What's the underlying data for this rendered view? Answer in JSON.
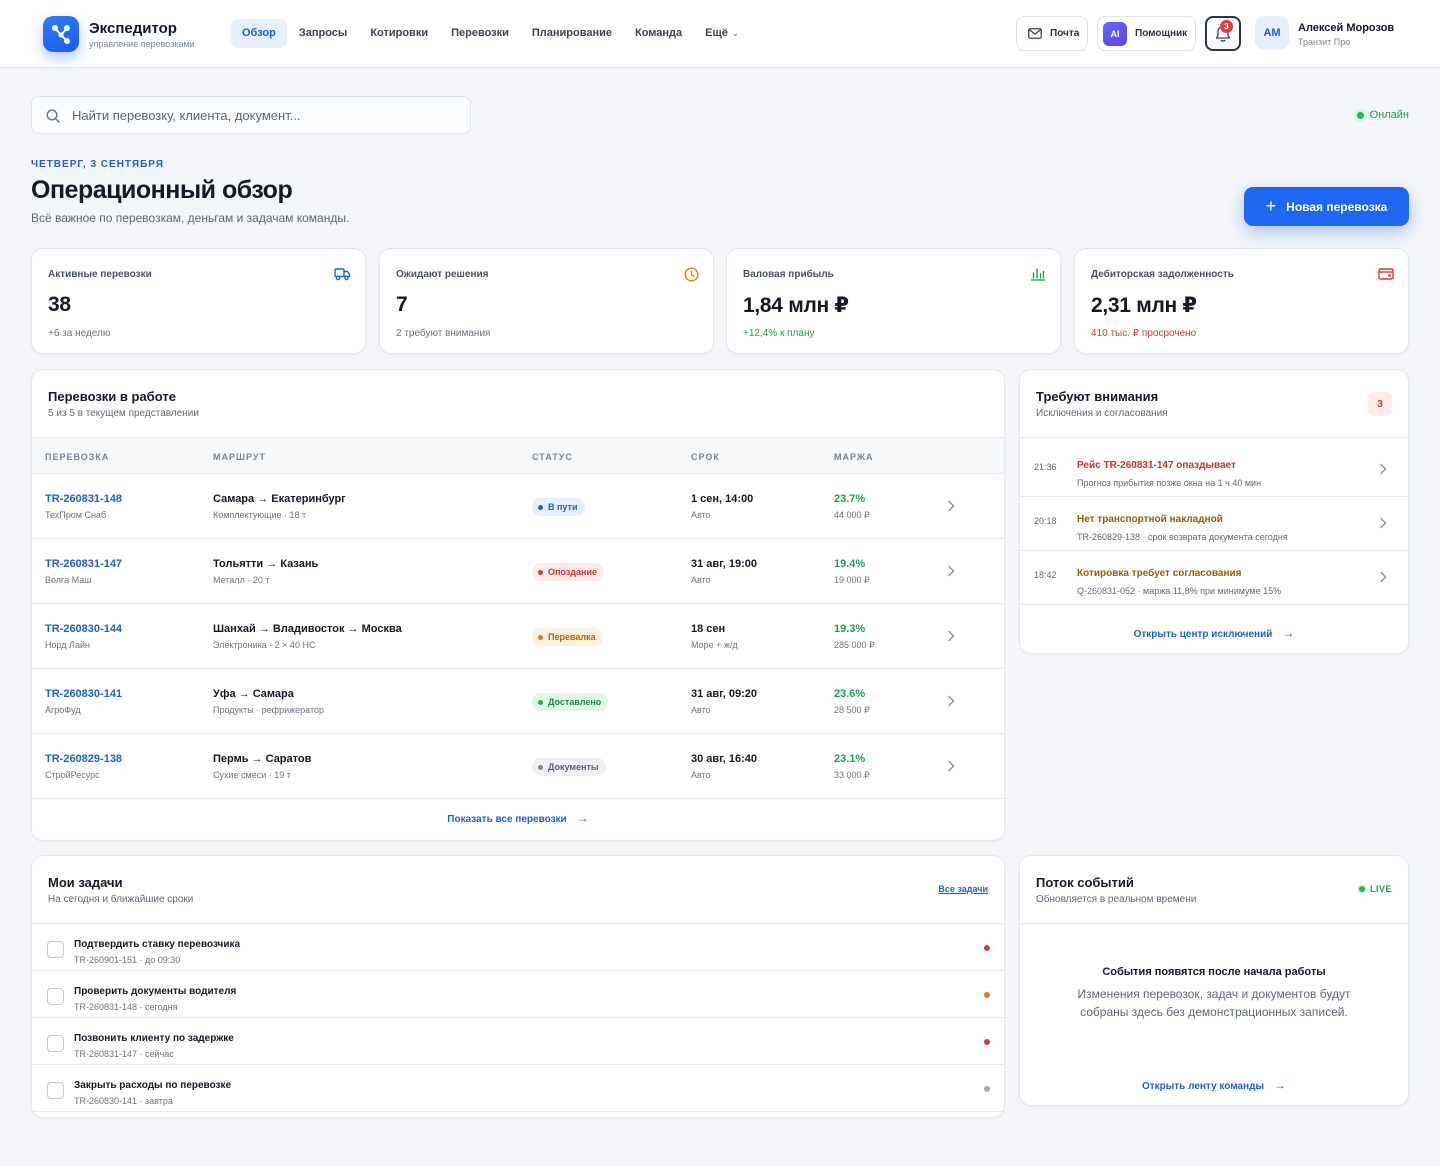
{
  "brand": {
    "name": "Экспедитор",
    "subtitle": "управление перевозками"
  },
  "nav": [
    {
      "label": "Обзор",
      "active": true
    },
    {
      "label": "Запросы"
    },
    {
      "label": "Котировки"
    },
    {
      "label": "Перевозки"
    },
    {
      "label": "Планирование"
    },
    {
      "label": "Команда"
    },
    {
      "label": "Ещё"
    }
  ],
  "header": {
    "mail_label": "Почта",
    "ai_badge": "AI",
    "ai_label": "Помощник",
    "notifications_count": "3",
    "user_initials": "АМ",
    "user_name": "Алексей Морозов",
    "user_org": "Транзит Про"
  },
  "search": {
    "placeholder": "Найти перевозку, клиента, документ..."
  },
  "status": {
    "online_label": "Онлайн"
  },
  "page": {
    "date_label": "ЧЕТВЕРГ, 3 СЕНТЯБРЯ",
    "title": "Операционный обзор",
    "subtitle": "Всё важное по перевозкам, деньгам и задачам команды.",
    "new_button": "Новая перевозка"
  },
  "kpis": [
    {
      "label": "Активные перевозки",
      "value": "38",
      "note": "+6 за неделю",
      "icon": "truck-icon"
    },
    {
      "label": "Ожидают решения",
      "value": "7",
      "note": "2 требуют внимания",
      "icon": "clock-icon"
    },
    {
      "label": "Валовая прибыль",
      "value": "1,84 млн ₽",
      "note": "+12,4% к плану",
      "icon": "bar-chart-icon"
    },
    {
      "label": "Дебиторская задолженность",
      "value": "2,31 млн ₽",
      "note": "410 тыс. ₽ просрочено",
      "icon": "wallet-icon"
    }
  ],
  "shipments": {
    "title": "Перевозки в работе",
    "subtitle": "5 из 5 в текущем представлении",
    "columns": [
      "ПЕРЕВОЗКА",
      "МАРШРУТ",
      "СТАТУС",
      "СРОК",
      "МАРЖА"
    ],
    "rows": [
      {
        "id": "TR-260831-148",
        "client": "ТехПром Снаб",
        "route": "Самара → Екатеринбург",
        "cargo": "Комплектующие · 18 т",
        "status": "В пути",
        "status_color": "blue",
        "due": "1 сен, 14:00",
        "mode": "Авто",
        "margin_pct": "23.7%",
        "margin_amount": "44 000 ₽"
      },
      {
        "id": "TR-260831-147",
        "client": "Волга Маш",
        "route": "Тольятти → Казань",
        "cargo": "Металл · 20 т",
        "status": "Опоздание",
        "status_color": "red",
        "due": "31 авг, 19:00",
        "mode": "Авто",
        "margin_pct": "19.4%",
        "margin_amount": "19 000 ₽"
      },
      {
        "id": "TR-260830-144",
        "client": "Норд Лайн",
        "route": "Шанхай → Владивосток → Москва",
        "cargo": "Электроника · 2 × 40 HC",
        "status": "Перевалка",
        "status_color": "amber",
        "due": "18 сен",
        "mode": "Море + ж/д",
        "margin_pct": "19.3%",
        "margin_amount": "285 000 ₽"
      },
      {
        "id": "TR-260830-141",
        "client": "АгроФуд",
        "route": "Уфа → Самара",
        "cargo": "Продукты · рефрижератор",
        "status": "Доставлено",
        "status_color": "green",
        "due": "31 авг, 09:20",
        "mode": "Авто",
        "margin_pct": "23.6%",
        "margin_amount": "28 500 ₽"
      },
      {
        "id": "TR-260829-138",
        "client": "СтройРесурс",
        "route": "Пермь → Саратов",
        "cargo": "Сухие смеси · 19 т",
        "status": "Документы",
        "status_color": "gray",
        "due": "30 авг, 16:40",
        "mode": "Авто",
        "margin_pct": "23.1%",
        "margin_amount": "33 000 ₽"
      }
    ],
    "show_all": "Показать все перевозки"
  },
  "attention": {
    "title": "Требуют внимания",
    "subtitle": "Исключения и согласования",
    "count": "3",
    "items": [
      {
        "time": "21:36",
        "title": "Рейс TR-260831-147 опаздывает",
        "desc": "Прогноз прибытия позже окна на 1 ч 40 мин",
        "color": "red"
      },
      {
        "time": "20:18",
        "title": "Нет транспортной накладной",
        "desc": "TR-260829-138 · срок возврата документа сегодня",
        "color": "amber"
      },
      {
        "time": "18:42",
        "title": "Котировка требует согласования",
        "desc": "Q-260831-052 · маржа 11,8% при минимуме 15%",
        "color": "amber"
      }
    ],
    "link": "Открыть центр исключений"
  },
  "tasks": {
    "title": "Мои задачи",
    "subtitle": "На сегодня и ближайшие сроки",
    "all_link": "Все задачи",
    "items": [
      {
        "title": "Подтвердить ставку перевозчика",
        "meta": "TR-260901-151 · до 09:30",
        "priority_color": "#d33a3a"
      },
      {
        "title": "Проверить документы водителя",
        "meta": "TR-260831-148 · сегодня",
        "priority_color": "#d97e12"
      },
      {
        "title": "Позвонить клиенту по задержке",
        "meta": "TR-260831-147 · сейчас",
        "priority_color": "#d33a3a"
      },
      {
        "title": "Закрыть расходы по перевозке",
        "meta": "TR-260830-141 · завтра",
        "priority_color": "#a3aab6"
      }
    ]
  },
  "events": {
    "title": "Поток событий",
    "subtitle": "Обновляется в реальном времени",
    "live_label": "LIVE",
    "empty_title": "События появятся после начала работы",
    "empty_text": "Изменения перевозок, задач и документов будут собраны здесь без демонстрационных записей.",
    "link": "Открыть ленту команды"
  },
  "colors": {
    "accent": "#1f66f0",
    "success": "#1f9d58",
    "danger": "#d33a3a",
    "warning": "#d97e12"
  }
}
